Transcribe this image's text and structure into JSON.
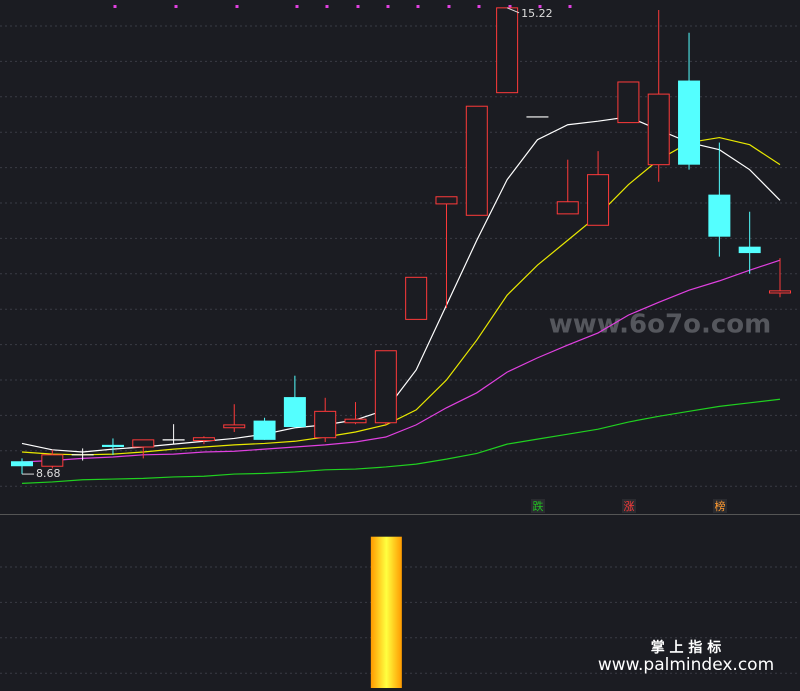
{
  "chart_data": {
    "type": "candlestick",
    "categories": [
      null,
      null,
      null,
      null,
      null,
      null,
      null,
      null,
      null,
      null,
      null,
      null,
      null,
      null,
      null,
      null,
      null,
      null,
      null,
      null,
      null,
      null,
      null,
      null,
      null,
      null
    ],
    "open": [
      8.86,
      8.79,
      8.95,
      9.09,
      9.06,
      9.16,
      9.15,
      9.33,
      9.43,
      9.76,
      9.19,
      9.4,
      9.4,
      10.85,
      12.47,
      12.31,
      14.03,
      13.69,
      12.33,
      12.17,
      13.61,
      13.02,
      14.2,
      12.6,
      11.87,
      11.22
    ],
    "close": [
      8.79,
      8.95,
      8.95,
      9.06,
      9.16,
      9.16,
      9.19,
      9.37,
      9.16,
      9.34,
      9.56,
      9.45,
      10.41,
      11.44,
      12.57,
      13.84,
      15.22,
      13.69,
      12.5,
      12.88,
      14.18,
      14.01,
      13.02,
      12.01,
      11.78,
      11.25
    ],
    "high": [
      8.9,
      9.02,
      9.04,
      9.18,
      9.16,
      9.38,
      9.21,
      9.66,
      9.47,
      10.06,
      9.75,
      9.69,
      10.41,
      11.44,
      12.57,
      13.84,
      15.22,
      13.69,
      13.09,
      13.21,
      14.18,
      15.19,
      14.87,
      13.33,
      12.36,
      11.71
    ],
    "low": [
      8.68,
      8.76,
      8.87,
      8.95,
      8.9,
      9.1,
      9.1,
      9.27,
      9.16,
      9.33,
      9.13,
      9.38,
      9.37,
      10.85,
      11.01,
      12.31,
      14.03,
      13.69,
      12.33,
      12.17,
      13.61,
      12.78,
      12.95,
      11.73,
      11.49,
      11.16
    ],
    "ylim": [
      8.12,
      15.33
    ],
    "up_color": "#ff3a3a",
    "down_color": "#54ffff",
    "doji_color": "#ffffff",
    "moving_averages": [
      {
        "color": "#ffffff",
        "values": [
          9.11,
          9.02,
          8.99,
          9.03,
          9.06,
          9.1,
          9.14,
          9.18,
          9.24,
          9.33,
          9.37,
          9.44,
          9.58,
          10.14,
          11.05,
          11.96,
          12.81,
          13.37,
          13.58,
          13.63,
          13.69,
          13.51,
          13.33,
          13.23,
          12.95,
          12.52
        ]
      },
      {
        "color": "#e8e800",
        "values": [
          8.99,
          8.96,
          8.95,
          8.96,
          8.99,
          9.03,
          9.06,
          9.09,
          9.11,
          9.14,
          9.2,
          9.27,
          9.37,
          9.58,
          10.0,
          10.56,
          11.19,
          11.61,
          11.96,
          12.31,
          12.74,
          13.09,
          13.33,
          13.4,
          13.3,
          13.02
        ]
      },
      {
        "color": "#e040e0",
        "values": [
          8.85,
          8.87,
          8.9,
          8.92,
          8.95,
          8.96,
          8.99,
          9.0,
          9.03,
          9.06,
          9.09,
          9.13,
          9.2,
          9.37,
          9.61,
          9.82,
          10.11,
          10.31,
          10.49,
          10.66,
          10.91,
          11.09,
          11.26,
          11.39,
          11.54,
          11.68
        ]
      },
      {
        "color": "#20d020",
        "values": [
          8.55,
          8.57,
          8.6,
          8.61,
          8.62,
          8.64,
          8.65,
          8.68,
          8.69,
          8.71,
          8.74,
          8.75,
          8.78,
          8.82,
          8.89,
          8.97,
          9.1,
          9.17,
          9.24,
          9.31,
          9.41,
          9.49,
          9.56,
          9.63,
          9.68,
          9.73
        ]
      }
    ],
    "high_label": "15.22",
    "low_label": "8.68",
    "markers": [
      {
        "label": "跌",
        "color": "#20c020"
      },
      {
        "label": "涨",
        "color": "#ff3a3a"
      },
      {
        "label": "榜",
        "color": "#ff9a30"
      }
    ],
    "indicator": {
      "type": "bar",
      "ylim": [
        0,
        1.15
      ],
      "values": [
        0,
        0,
        0,
        0,
        0,
        0,
        0,
        0,
        0,
        0,
        0,
        0,
        1,
        0,
        0,
        0,
        0,
        0,
        0,
        0,
        0,
        0,
        0,
        0,
        0,
        0
      ]
    }
  },
  "watermarks": {
    "site": "www.6o7o.com",
    "brand": "掌 上 指 标",
    "brand_site": "www.palmindex.com"
  }
}
